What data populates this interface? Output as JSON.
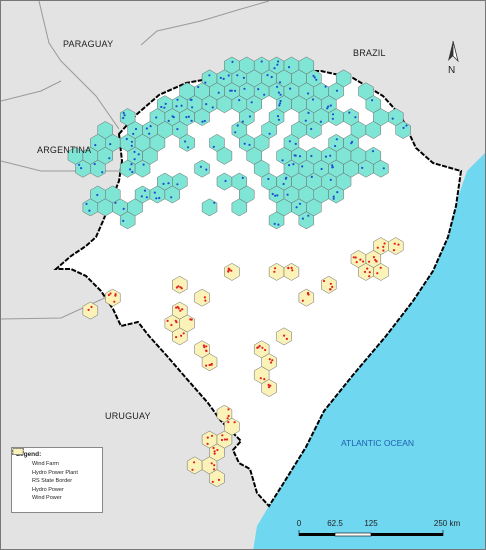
{
  "labels": {
    "paraguay": "PARAGUAY",
    "brazil": "BRAZIL",
    "argentina": "ARGENTINA",
    "uruguay": "URUGUAY",
    "ocean": "ATLANTIC OCEAN"
  },
  "north": "N",
  "legend": {
    "title": "Legend:",
    "items": [
      {
        "label": "Wind Farm",
        "kind": "dot",
        "color": "#e02020"
      },
      {
        "label": "Hydro Power Plant",
        "kind": "dot",
        "color": "#1f4fd0"
      },
      {
        "label": "RS State Border",
        "kind": "border",
        "color": "#000000"
      },
      {
        "label": "Hydro Power",
        "kind": "hex",
        "color": "#7fe6d6"
      },
      {
        "label": "Wind Power",
        "kind": "hex",
        "color": "#fbf2b8"
      }
    ]
  },
  "scale": {
    "ticks": [
      "0",
      "62.5",
      "125",
      "250 km"
    ]
  },
  "colors": {
    "land": "#e3e3e3",
    "state": "#ffffff",
    "ocean": "#6fd7f0",
    "hydro_hex": "#7fe6d6",
    "wind_hex": "#fbf2b8",
    "hex_stroke": "#6a6a6a",
    "wind_dot": "#e02020",
    "hydro_dot": "#1f4fd0"
  }
}
